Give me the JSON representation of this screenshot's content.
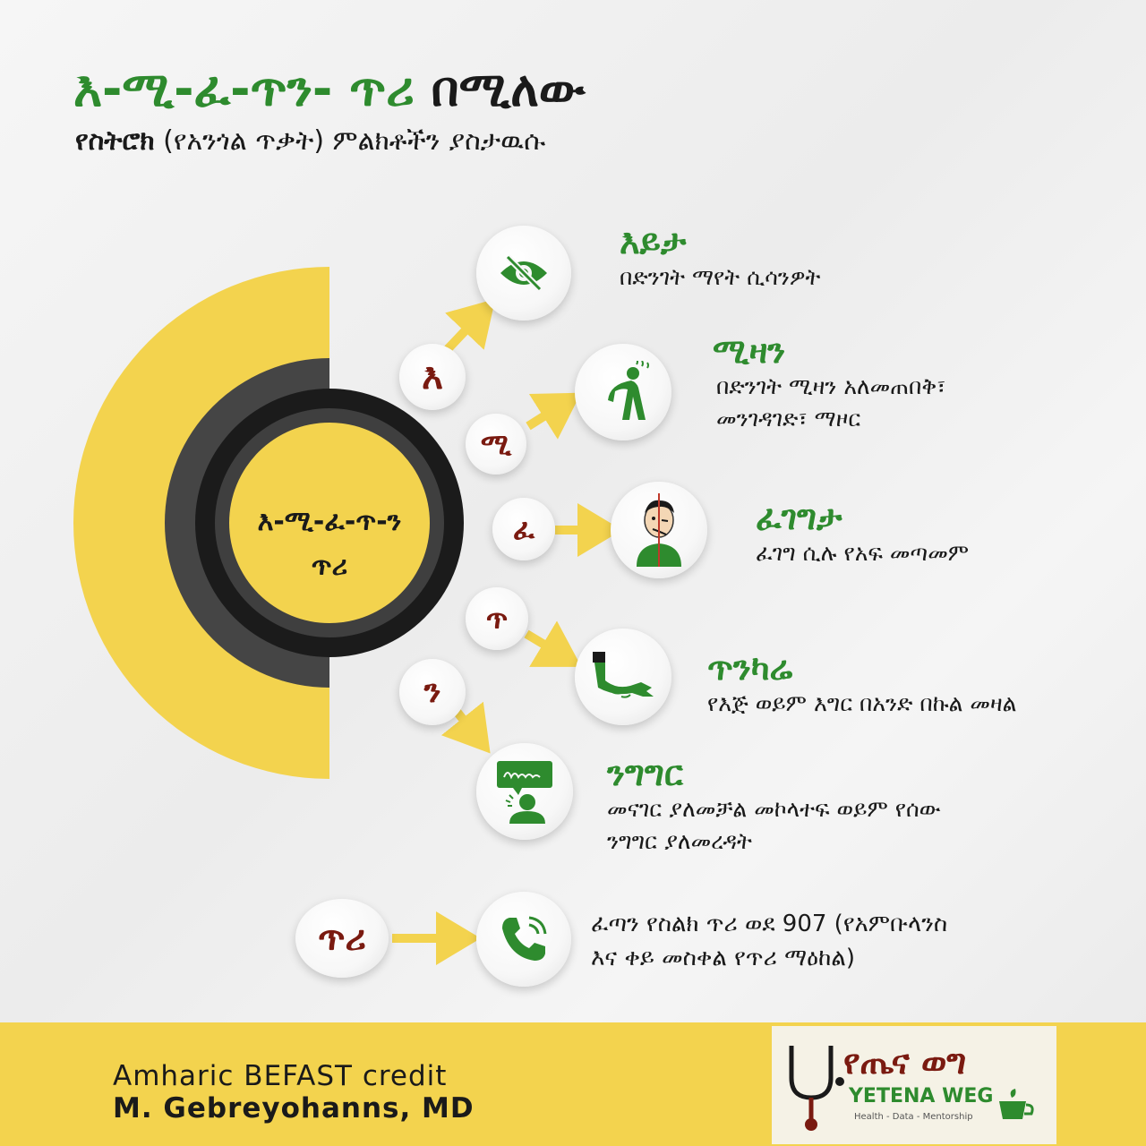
{
  "title": {
    "part1": "እ-ሚ-ፈ-ጥን- ጥሪ",
    "part2": "በሚለው"
  },
  "subtitle": {
    "bold": "የስትሮክ",
    "rest": "(የአንጎል ጥቃት) ምልክቶችን ያስታዉሱ"
  },
  "center": {
    "line1": "እ-ሚ-ፈ-ጥ-ን",
    "line2": "ጥሪ"
  },
  "items": [
    {
      "letter": "እ",
      "icon": "eye-slash-icon",
      "heading": "እይታ",
      "desc": [
        "በድንገት ማየት ሲሳንዎት"
      ]
    },
    {
      "letter": "ሚ",
      "icon": "dizzy-person-icon",
      "heading": "ሚዛን",
      "desc": [
        "በድንገት ሚዛን አለመጠበቅ፣",
        "መንገዳገድ፣ ማዞር"
      ]
    },
    {
      "letter": "ፈ",
      "icon": "face-droop-icon",
      "heading": "ፈገግታ",
      "desc": [
        "ፈገግ ሲሉ የአፍ መጣመም"
      ]
    },
    {
      "letter": "ጥ",
      "icon": "weak-arm-icon",
      "heading": "ጥንካሬ",
      "desc": [
        "የእጅ ወይም እግር በአንድ በኩል መዛል"
      ]
    },
    {
      "letter": "ን",
      "icon": "speech-difficulty-icon",
      "heading": "ንግግር",
      "desc": [
        "መናገር ያለመቻል መኮላተፍ ወይም የሰው",
        "ንግግር ያለመረዳት"
      ]
    }
  ],
  "call": {
    "letter": "ጥሪ",
    "icon": "phone-icon",
    "desc": [
      "ፈጣን የስልክ ጥሪ ወደ 907 (የአምቡላንስ",
      "እና ቀይ መስቀል የጥሪ ማዕከል)"
    ]
  },
  "footer": {
    "credit_line1": "Amharic BEFAST credit",
    "credit_line2": "M. Gebreyohanns, MD",
    "logo_am": "የጤና ወግ",
    "logo_en": "YETENA WEG",
    "logo_tagline": "Health - Data - Mentorship"
  },
  "colors": {
    "green": "#2e8b2e",
    "yellow": "#f3d34e",
    "maroon": "#7a1a10",
    "dark_gray": "#444444"
  }
}
